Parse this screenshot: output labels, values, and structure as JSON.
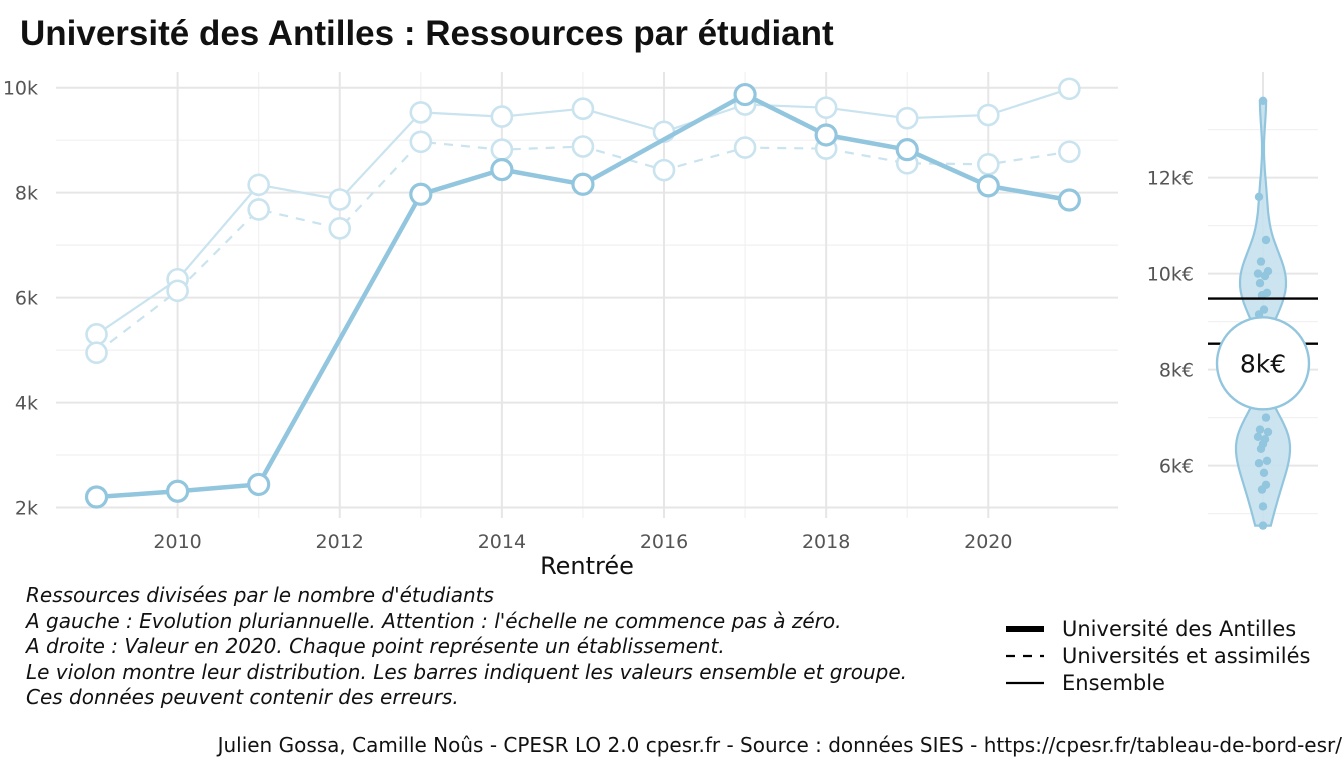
{
  "title": "Université des Antilles  :  Ressources par étudiant",
  "chart_data": [
    {
      "type": "line",
      "xlabel": "Rentrée",
      "ylabel": "",
      "x": [
        2009,
        2010,
        2011,
        2012,
        2013,
        2014,
        2015,
        2016,
        2017,
        2018,
        2019,
        2020,
        2021
      ],
      "xticks": [
        2010,
        2012,
        2014,
        2016,
        2018,
        2020
      ],
      "xtick_labels": [
        "2010",
        "2012",
        "2014",
        "2016",
        "2018",
        "2020"
      ],
      "yticks": [
        2000,
        4000,
        6000,
        8000,
        10000
      ],
      "ytick_labels": [
        "2k",
        "4k",
        "6k",
        "8k",
        "10k"
      ],
      "xlim": [
        2008.5,
        2021.6
      ],
      "ylim": [
        1800,
        10300
      ],
      "grid": true,
      "series": [
        {
          "name": "Ensemble",
          "style": "solid-thin",
          "color": "#c9e3ef",
          "markers": true,
          "values": [
            5300,
            6350,
            8150,
            7870,
            9530,
            9450,
            9600,
            9160,
            9680,
            9620,
            9420,
            9480,
            9980
          ]
        },
        {
          "name": "Universités et assimilés",
          "style": "dashed",
          "color": "#c9e3ef",
          "markers": true,
          "values": [
            4950,
            6130,
            7680,
            7320,
            8970,
            8820,
            8880,
            8430,
            8860,
            8840,
            8560,
            8540,
            8780
          ]
        },
        {
          "name": "Université des Antilles",
          "style": "solid-thick",
          "color": "#92c5de",
          "markers": true,
          "values": [
            2200,
            2310,
            2440,
            null,
            7970,
            8440,
            8160,
            null,
            9870,
            9100,
            8820,
            8130,
            7860
          ]
        }
      ]
    },
    {
      "type": "violin",
      "subtitle": "Valeur en 2020",
      "yticks": [
        6000,
        8000,
        10000,
        12000
      ],
      "ytick_labels": [
        "6k€",
        "8k€",
        "10k€",
        "12k€"
      ],
      "ylim": [
        4700,
        14200
      ],
      "points": [
        13600,
        11600,
        10700,
        10250,
        10050,
        10000,
        9950,
        9800,
        9600,
        9550,
        9250,
        9150,
        7000,
        6750,
        6700,
        6600,
        6550,
        6450,
        6350,
        6100,
        6050,
        5850,
        5600,
        5500,
        5150,
        4750
      ],
      "ref_lines": [
        {
          "name": "Ensemble",
          "value": 9480
        },
        {
          "name": "Universités et assimilés",
          "value": 8540
        }
      ],
      "highlight_value": 8130,
      "highlight_label": "8k€",
      "color": "#92c5de",
      "fill": "#c6e1ed"
    }
  ],
  "notes": [
    "Ressources divisées par le nombre d'étudiants",
    "A gauche : Evolution pluriannuelle. Attention : l'échelle ne commence pas à zéro.",
    "A droite : Valeur en 2020. Chaque point représente un établissement.",
    "Le violon montre leur distribution. Les barres indiquent les valeurs ensemble et groupe.",
    "Ces données peuvent contenir des erreurs."
  ],
  "legend": [
    {
      "label": "Université des Antilles",
      "style": "thick"
    },
    {
      "label": "Universités et assimilés",
      "style": "dashed"
    },
    {
      "label": "Ensemble",
      "style": "thin"
    }
  ],
  "caption": "Julien Gossa, Camille Noûs - CPESR LO 2.0 cpesr.fr - Source : données SIES - https://cpesr.fr/tableau-de-bord-esr/"
}
